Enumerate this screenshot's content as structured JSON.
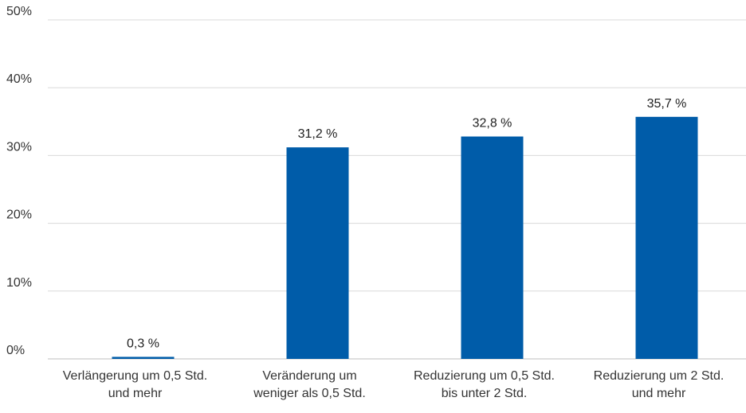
{
  "chart_data": {
    "type": "bar",
    "categories": [
      [
        "Verlängerung um 0,5 Std.",
        "und mehr"
      ],
      [
        "Veränderung um",
        "weniger als 0,5 Std."
      ],
      [
        "Reduzierung um 0,5 Std.",
        "bis unter 2 Std."
      ],
      [
        "Reduzierung um 2 Std.",
        "und mehr"
      ]
    ],
    "values": [
      0.3,
      31.2,
      32.8,
      35.7
    ],
    "data_labels": [
      "0,3 %",
      "31,2 %",
      "32,8 %",
      "35,7 %"
    ],
    "yticks": [
      0,
      10,
      20,
      30,
      40,
      50
    ],
    "ytick_labels": [
      "0%",
      "10%",
      "20%",
      "30%",
      "40%",
      "50%"
    ],
    "ylim": [
      0,
      50
    ],
    "grid": true,
    "bar_color": "#005ca9"
  }
}
